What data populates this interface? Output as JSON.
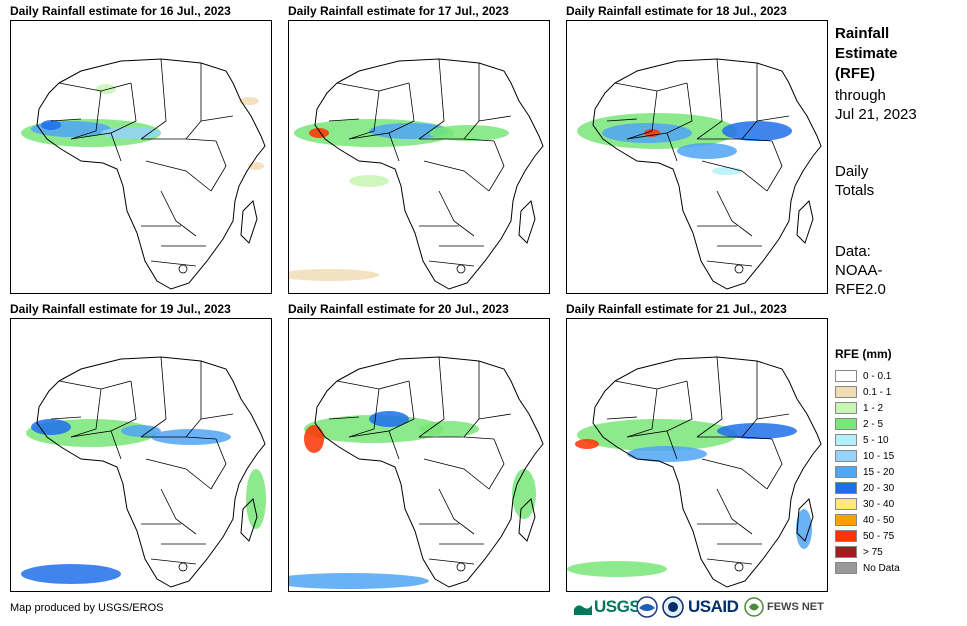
{
  "panels": [
    {
      "title": "Daily Rainfall estimate for 16 Jul., 2023"
    },
    {
      "title": "Daily Rainfall estimate for 17 Jul., 2023"
    },
    {
      "title": "Daily Rainfall estimate for 18 Jul., 2023"
    },
    {
      "title": "Daily Rainfall estimate for 19 Jul., 2023"
    },
    {
      "title": "Daily Rainfall estimate for 20 Jul., 2023"
    },
    {
      "title": "Daily Rainfall estimate for 21 Jul., 2023"
    }
  ],
  "sidebar": {
    "title_line1": "Rainfall",
    "title_line2": "Estimate",
    "title_line3": "(RFE)",
    "through_label": "through",
    "through_date": "Jul 21, 2023",
    "daily_line1": "Daily",
    "daily_line2": "Totals",
    "data_line1": "Data:",
    "data_line2": "NOAA-",
    "data_line3": "RFE2.0"
  },
  "legend": {
    "title": "RFE (mm)",
    "items": [
      {
        "label": "0 - 0.1",
        "color": "#ffffff"
      },
      {
        "label": "0.1 - 1",
        "color": "#f2dcb4"
      },
      {
        "label": "1 - 2",
        "color": "#c8f5b4"
      },
      {
        "label": "2 - 5",
        "color": "#78e678"
      },
      {
        "label": "5 - 10",
        "color": "#b4f0fa"
      },
      {
        "label": "10 - 15",
        "color": "#96d2fa"
      },
      {
        "label": "15 - 20",
        "color": "#50a5f5"
      },
      {
        "label": "20 - 30",
        "color": "#1e6eeb"
      },
      {
        "label": "30 - 40",
        "color": "#ffe878"
      },
      {
        "label": "40 - 50",
        "color": "#ffa000"
      },
      {
        "label": "50 - 75",
        "color": "#ff3200"
      },
      {
        "label": "> 75",
        "color": "#a01e1e"
      },
      {
        "label": "No Data",
        "color": "#999999"
      }
    ]
  },
  "footer": {
    "credit": "Map produced by USGS/EROS"
  },
  "logos": {
    "usgs": "USGS",
    "usaid": "USAID",
    "fewsnet": "FEWS NET",
    "usgs_color": "#00785a",
    "usaid_color": "#002f6c",
    "fews_color": "#444444"
  }
}
